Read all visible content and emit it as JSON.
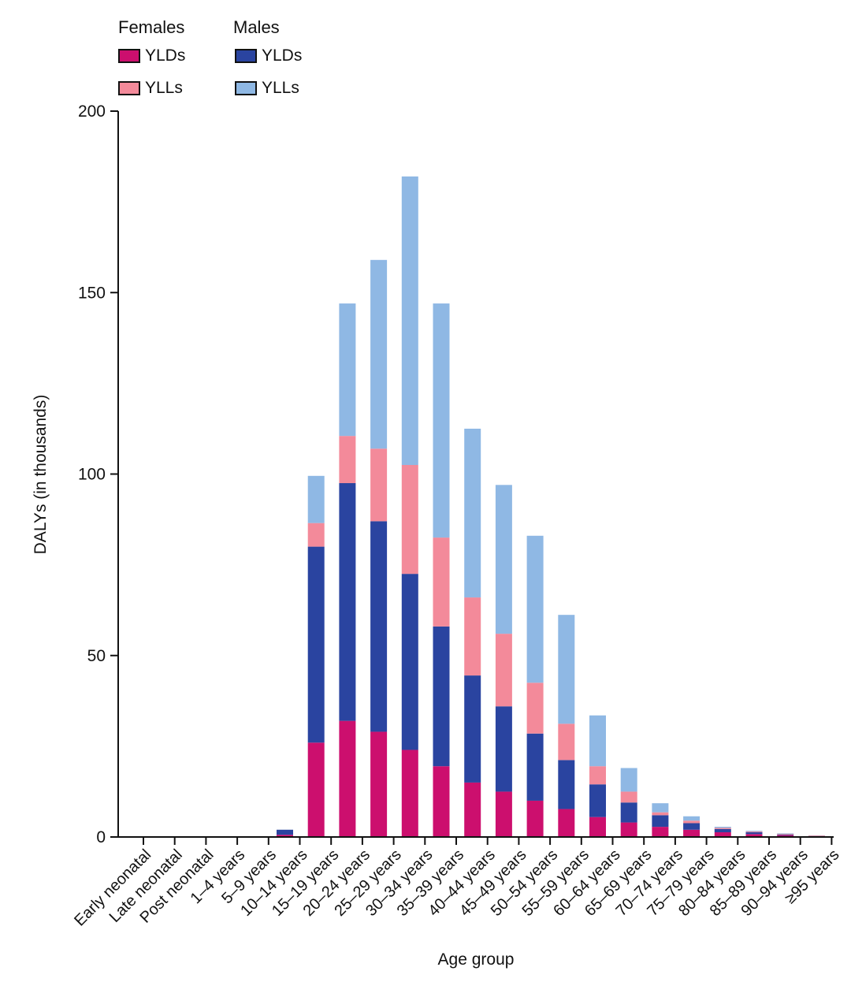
{
  "chart_data": {
    "type": "bar",
    "stacked": true,
    "xlabel": "Age group",
    "ylabel": "DALYs (in thousands)",
    "ylim": [
      0,
      200
    ],
    "yticks": [
      0,
      50,
      100,
      150,
      200
    ],
    "grid": false,
    "legend_placement": "top-left",
    "categories": [
      "Early neonatal",
      "Late neonatal",
      "Post neonatal",
      "1–4 years",
      "5–9 years",
      "10–14 years",
      "15–19 years",
      "20–24 years",
      "25–29 years",
      "30–34 years",
      "35–39 years",
      "40–44 years",
      "45–49 years",
      "50–54 years",
      "55–59 years",
      "60–64 years",
      "65–69 years",
      "70–74 years",
      "75–79 years",
      "80–84 years",
      "85–89 years",
      "90–94 years",
      "≥95 years"
    ],
    "series": [
      {
        "group": "Females",
        "name": "YLDs",
        "color": "#cc0f6e",
        "values": [
          0,
          0,
          0,
          0,
          0,
          0.6,
          26,
          32,
          29,
          24,
          19.5,
          15,
          12.5,
          10,
          7.7,
          5.5,
          4,
          2.8,
          2,
          1.3,
          0.8,
          0.5,
          0.2
        ]
      },
      {
        "group": "Males",
        "name": "YLDs",
        "color": "#2a44a0",
        "values": [
          0,
          0,
          0,
          0,
          0,
          1.4,
          54,
          65.5,
          58,
          48.5,
          38.5,
          29.5,
          23.5,
          18.5,
          13.5,
          9,
          5.5,
          3.2,
          1.8,
          0.9,
          0.5,
          0.2,
          0.1
        ]
      },
      {
        "group": "Females",
        "name": "YLLs",
        "color": "#f38a9a",
        "values": [
          0,
          0,
          0,
          0,
          0,
          0,
          6.5,
          13,
          20,
          30,
          24.5,
          21.5,
          20,
          14,
          10,
          5,
          3,
          0.8,
          0.7,
          0.3,
          0.2,
          0.2,
          0.1
        ]
      },
      {
        "group": "Males",
        "name": "YLLs",
        "color": "#8fb8e4",
        "values": [
          0,
          0,
          0,
          0,
          0,
          0,
          13,
          36.5,
          52,
          79.5,
          64.5,
          46.5,
          41,
          40.5,
          30,
          14,
          6.5,
          2.5,
          1.2,
          0.3,
          0.2,
          0.1,
          0
        ]
      }
    ]
  },
  "legend": {
    "females_title": "Females",
    "males_title": "Males",
    "females_ylds": "YLDs",
    "females_ylls": "YLLs",
    "males_ylds": "YLDs",
    "males_ylls": "YLLs"
  }
}
